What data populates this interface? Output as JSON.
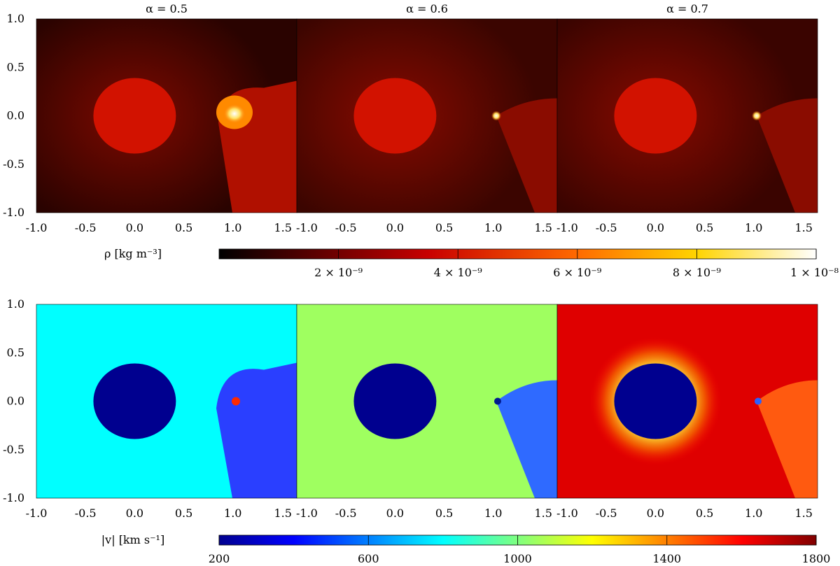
{
  "chart_data": [
    {
      "type": "heatmap",
      "quantity_label": "ρ [kg m⁻³]",
      "colormap": "hot",
      "colorbar": {
        "min": 0,
        "max": 1e-08,
        "ticks": [
          {
            "value": 2e-09,
            "label": "2 × 10⁻⁹"
          },
          {
            "value": 4e-09,
            "label": "4 × 10⁻⁹"
          },
          {
            "value": 6e-09,
            "label": "6 × 10⁻⁹"
          },
          {
            "value": 8e-09,
            "label": "8 × 10⁻⁹"
          },
          {
            "value": 1e-08,
            "label": "1 × 10⁻⁸"
          }
        ]
      },
      "x_ticks": [
        "-1.0",
        "-0.5",
        "0.0",
        "0.5",
        "1.0",
        "1.5"
      ],
      "y_ticks": [
        "1.0",
        "0.5",
        "0.0",
        "-0.5",
        "-1.0"
      ],
      "xlim": [
        -1.0,
        1.65
      ],
      "ylim": [
        -1.0,
        1.0
      ],
      "panels": [
        {
          "title": "α = 0.5",
          "alpha": 0.5
        },
        {
          "title": "α = 0.6",
          "alpha": 0.6
        },
        {
          "title": "α = 0.7",
          "alpha": 0.7
        }
      ]
    },
    {
      "type": "heatmap",
      "quantity_label": "|v| [km s⁻¹]",
      "colormap": "jet",
      "colorbar": {
        "min": 200,
        "max": 1800,
        "ticks": [
          {
            "value": 200,
            "label": "200"
          },
          {
            "value": 600,
            "label": "600"
          },
          {
            "value": 1000,
            "label": "1000"
          },
          {
            "value": 1400,
            "label": "1400"
          },
          {
            "value": 1800,
            "label": "1800"
          }
        ]
      },
      "x_ticks": [
        "-1.0",
        "-0.5",
        "0.0",
        "0.5",
        "1.0",
        "1.5"
      ],
      "y_ticks": [
        "1.0",
        "0.5",
        "0.0",
        "-0.5",
        "-1.0"
      ],
      "xlim": [
        -1.0,
        1.65
      ],
      "ylim": [
        -1.0,
        1.0
      ],
      "panels": [
        {
          "background_speed": 800
        },
        {
          "background_speed": 1050
        },
        {
          "background_speed": 1650
        }
      ]
    }
  ]
}
